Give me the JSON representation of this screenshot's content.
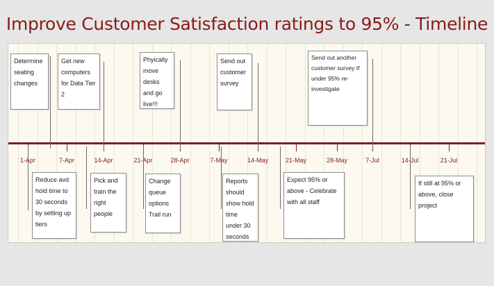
{
  "title": "Improve Customer Satisfaction ratings to 95% - Timeline",
  "ticks": [
    "1-Apr",
    "7-Apr",
    "14-Apr",
    "21-Apr",
    "28-Apr",
    "7-May",
    "14-May",
    "21-May",
    "28-May",
    "7-Jul",
    "14-Jul",
    "21-Jul"
  ],
  "notes_above": [
    "Determine seating changes",
    "Get new computers for Data Tier 2",
    "Phyically move desks and go live!!!",
    "Send out customer survey",
    "Send out another customer survey If under 95% re-investigate"
  ],
  "notes_below": [
    "Reduce avd hold time to 30 seconds by setting up tiers",
    "Pick and train the right people",
    "Change queue options Trail run",
    "Reports should show hold time under 30 seconds",
    "Expect 95% or above - Celebrate with all staff",
    "If still at 95% or above, close project"
  ],
  "colors": {
    "axis": "#7a1f1f",
    "title": "#8a1a1a",
    "panel": "#fbf9f0"
  }
}
